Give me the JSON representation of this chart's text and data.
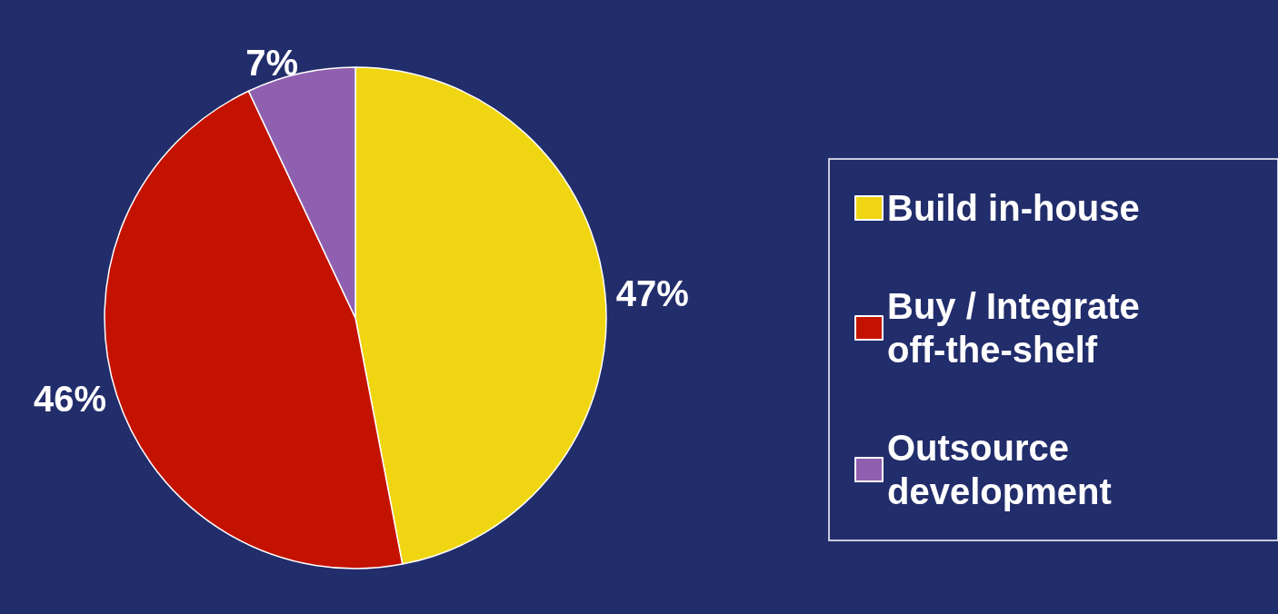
{
  "chart_data": {
    "type": "pie",
    "categories": [
      "Build in-house",
      "Buy / Integrate off-the-shelf",
      "Outsource development"
    ],
    "values": [
      47,
      46,
      7
    ],
    "colors": [
      "#f0d612",
      "#c41200",
      "#9060b0"
    ],
    "value_labels": [
      "47%",
      "46%",
      "7%"
    ],
    "legend": "right"
  }
}
